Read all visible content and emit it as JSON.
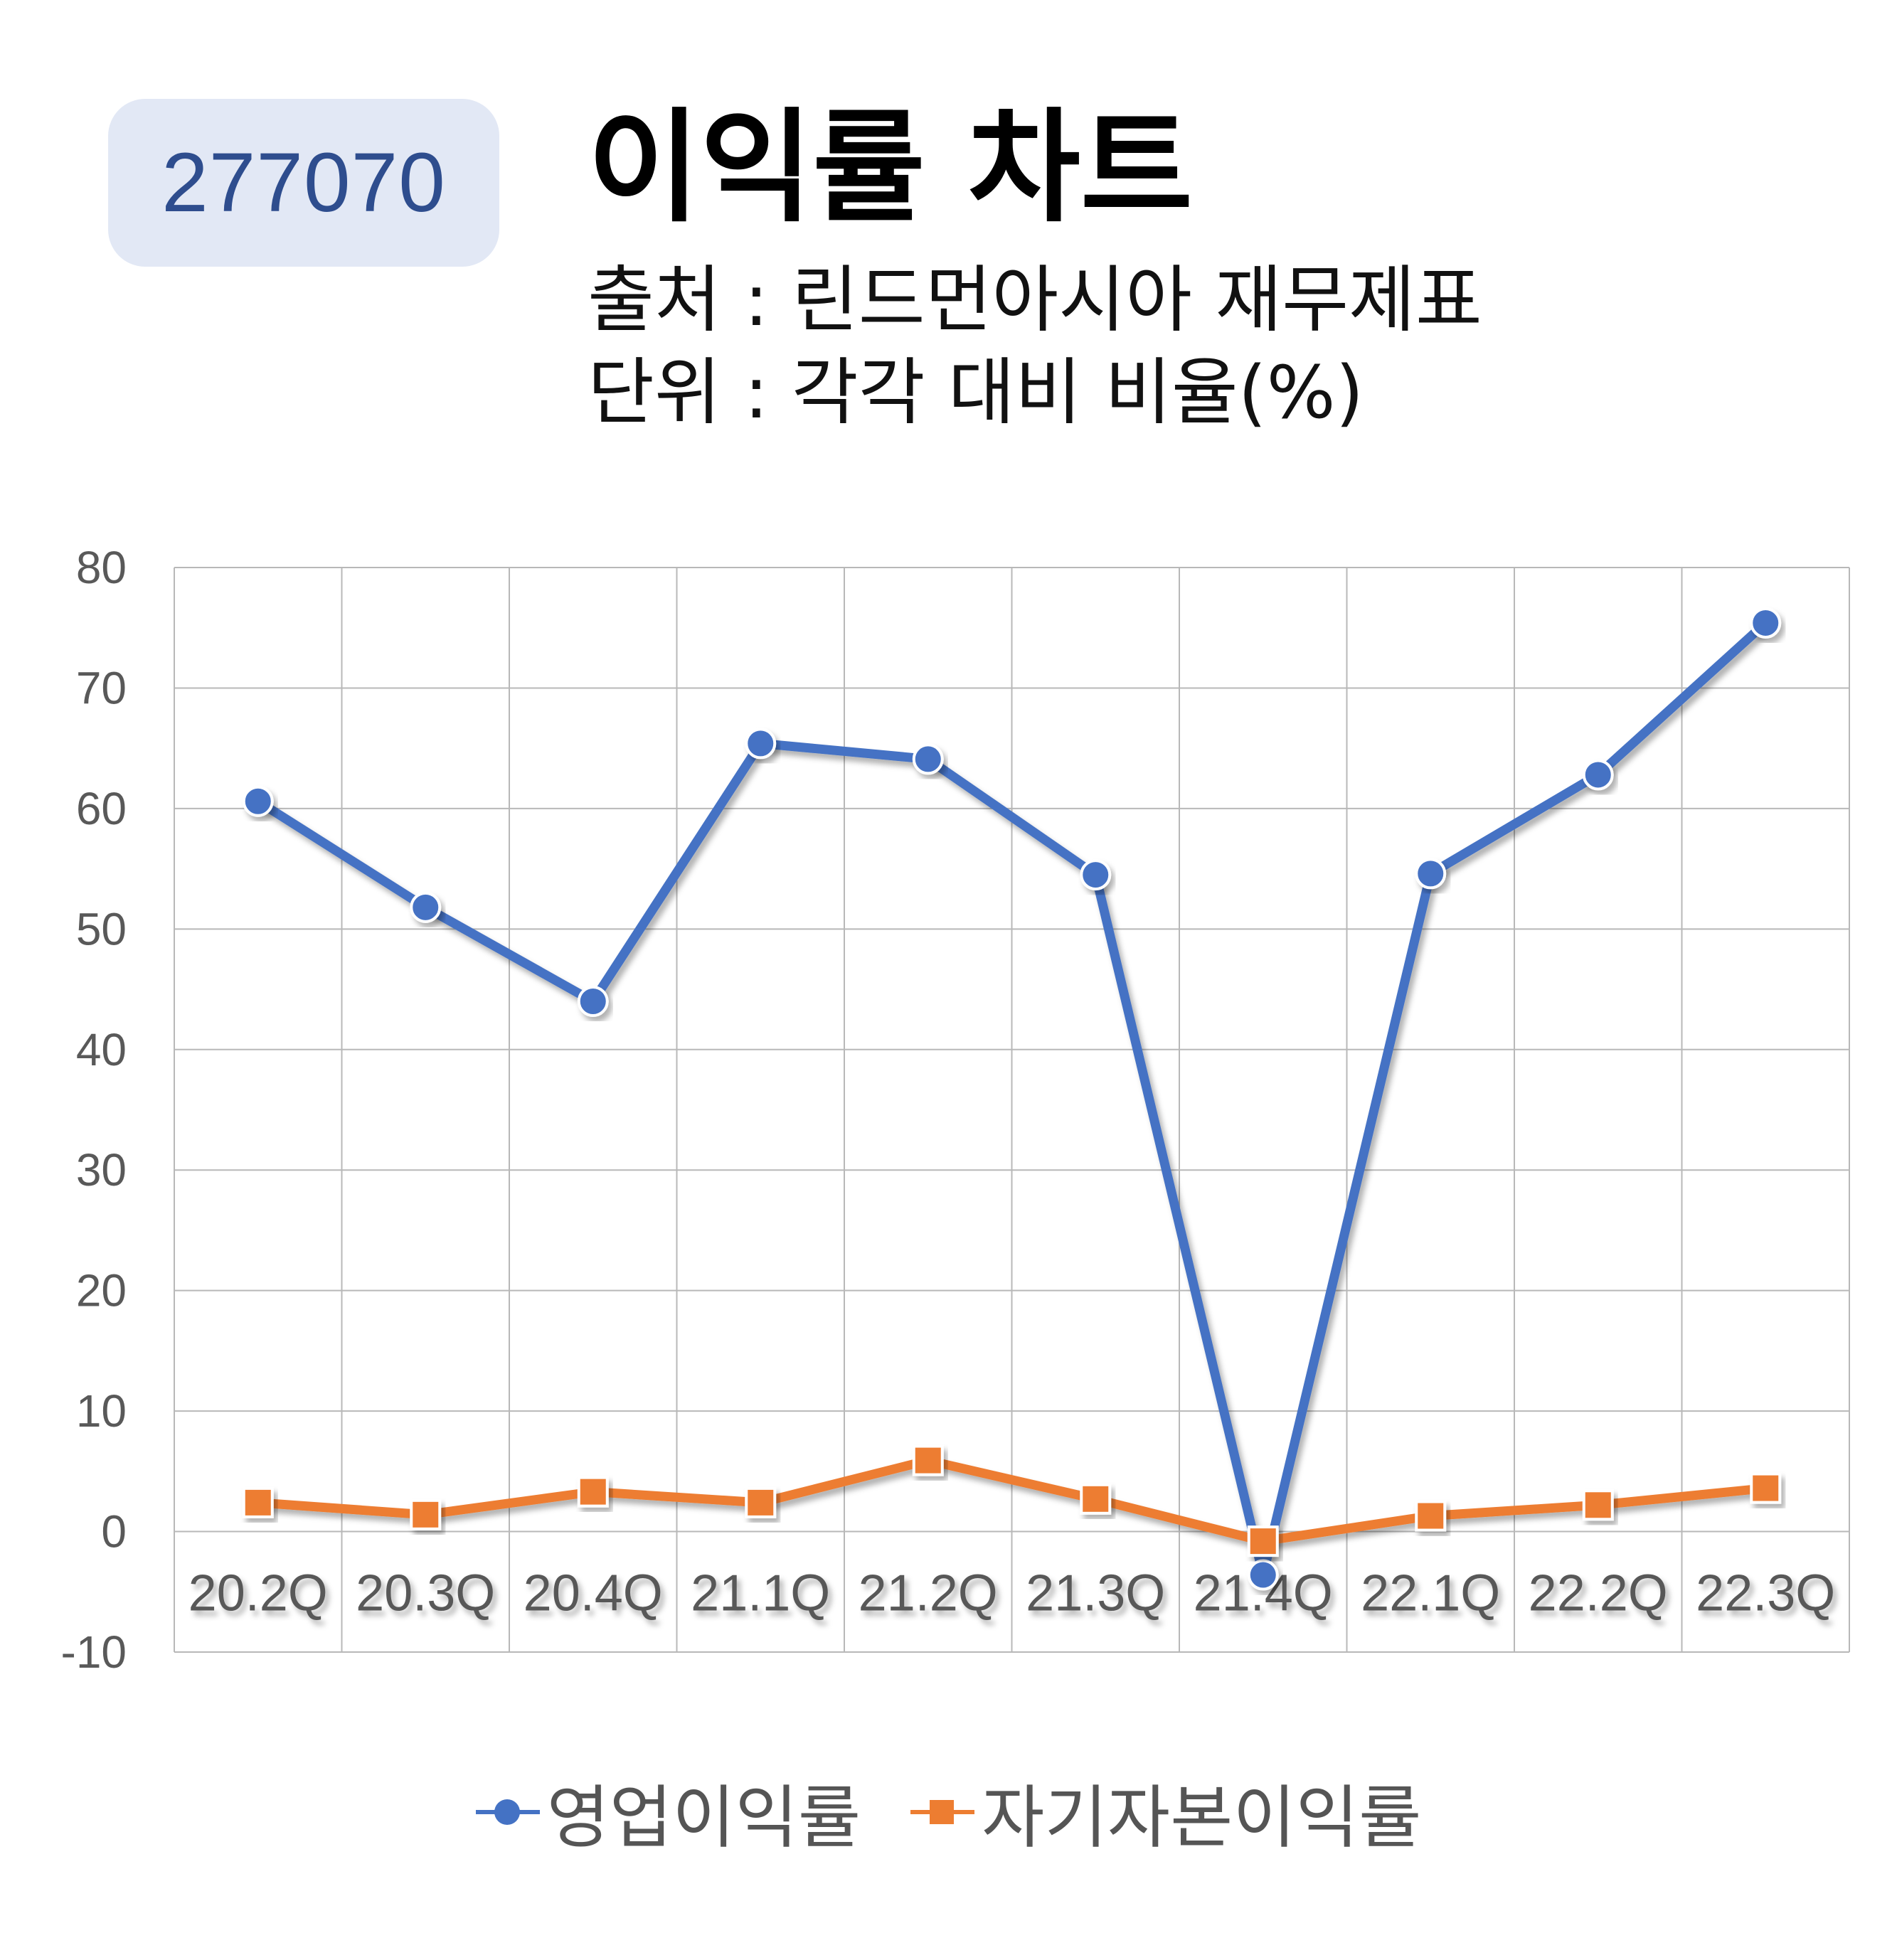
{
  "header": {
    "ticker": "277070",
    "title": "이익률 차트",
    "source": "출처 : 린드먼아시아 재무제표",
    "unit": "단위 : 각각 대비 비율(%)"
  },
  "colors": {
    "series_1": "#4472c4",
    "series_2": "#ed7d31",
    "badge_bg": "#e2e8f5",
    "badge_text": "#2e4d8e",
    "grid": "#b8b8b8",
    "axis_text": "#595959"
  },
  "chart_data": {
    "type": "line",
    "title": "이익률 차트",
    "categories": [
      "20.2Q",
      "20.3Q",
      "20.4Q",
      "21.1Q",
      "21.2Q",
      "21.3Q",
      "21.4Q",
      "22.1Q",
      "22.2Q",
      "22.3Q"
    ],
    "y_ticks": [
      80,
      70,
      60,
      50,
      40,
      30,
      20,
      10,
      0,
      -10
    ],
    "ylim": [
      -10,
      80
    ],
    "grid": true,
    "legend_position": "bottom",
    "series": [
      {
        "name": "영업이익률",
        "marker": "circle",
        "values": [
          60.6,
          51.8,
          44.0,
          65.4,
          64.1,
          54.5,
          -3.6,
          54.6,
          62.8,
          75.4
        ]
      },
      {
        "name": "자기자본이익률",
        "marker": "square",
        "values": [
          2.4,
          1.4,
          3.3,
          2.4,
          5.9,
          2.7,
          -0.8,
          1.3,
          2.2,
          3.6
        ]
      }
    ]
  }
}
